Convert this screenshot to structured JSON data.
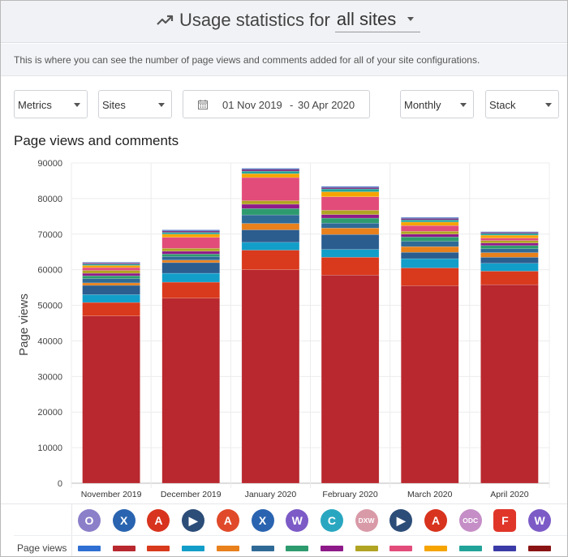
{
  "header": {
    "title": "Usage statistics for",
    "site_select_value": "all sites"
  },
  "info": "This is where you can see the number of page views and comments added for all of your site configurations.",
  "controls": {
    "metrics_label": "Metrics",
    "sites_label": "Sites",
    "date_start": "01 Nov 2019",
    "date_sep": "-",
    "date_end": "30 Apr 2020",
    "interval_label": "Monthly",
    "mode_label": "Stack"
  },
  "chart_title": "Page views and comments",
  "chart_data": {
    "type": "bar",
    "stacked": true,
    "categories": [
      "November 2019",
      "December 2019",
      "January 2020",
      "February 2020",
      "March 2020",
      "April 2020"
    ],
    "ylabel": "Page views",
    "ylim": [
      0,
      90000
    ],
    "yticks": [
      0,
      10000,
      20000,
      30000,
      40000,
      50000,
      60000,
      70000,
      80000,
      90000
    ],
    "grid": true,
    "series": [
      {
        "color": "#b8282e",
        "values": [
          47000,
          52000,
          60000,
          58500,
          55500,
          55800
        ]
      },
      {
        "color": "#d9391c",
        "values": [
          3800,
          4500,
          5500,
          5000,
          5000,
          3800
        ]
      },
      {
        "color": "#129ec9",
        "values": [
          2200,
          2500,
          2200,
          2200,
          2600,
          2200
        ]
      },
      {
        "color": "#2b5d8f",
        "values": [
          2600,
          3000,
          3500,
          4200,
          1800,
          1700
        ]
      },
      {
        "color": "#e8801c",
        "values": [
          700,
          700,
          1800,
          1800,
          1600,
          1300
        ]
      },
      {
        "color": "#2f6a97",
        "values": [
          1200,
          1000,
          2400,
          1400,
          1500,
          1100
        ]
      },
      {
        "color": "#2e9b6e",
        "values": [
          800,
          700,
          1800,
          1400,
          1200,
          900
        ]
      },
      {
        "color": "#8e1a8a",
        "values": [
          700,
          800,
          1200,
          1000,
          800,
          700
        ]
      },
      {
        "color": "#b0a422",
        "values": [
          800,
          800,
          1000,
          1200,
          800,
          700
        ]
      },
      {
        "color": "#e24c7a",
        "values": [
          800,
          3100,
          6500,
          3800,
          1600,
          700
        ]
      },
      {
        "color": "#f6a400",
        "values": [
          600,
          900,
          1100,
          1400,
          1000,
          800
        ]
      },
      {
        "color": "#22a39a",
        "values": [
          400,
          500,
          700,
          800,
          600,
          500
        ]
      },
      {
        "color": "#7b2a7c",
        "values": [
          300,
          400,
          500,
          400,
          400,
          300
        ]
      },
      {
        "color": "#3b6bbf",
        "values": [
          200,
          300,
          300,
          300,
          300,
          200
        ]
      }
    ]
  },
  "legend": {
    "row_label": "Page views",
    "sites": [
      {
        "icon": "o-circle-logo-icon",
        "letter": "O",
        "color": "#8b7fc9"
      },
      {
        "icon": "x-circle-logo-icon",
        "letter": "X",
        "color": "#2a64b0"
      },
      {
        "icon": "a-circle-logo-icon",
        "letter": "A",
        "color": "#d8331e"
      },
      {
        "icon": "play-circle-logo-icon",
        "letter": "▶",
        "color": "#2c4d78"
      },
      {
        "icon": "a-triangle-logo-icon",
        "letter": "A",
        "color": "#e04a2a"
      },
      {
        "icon": "x-circle-logo-icon",
        "letter": "X",
        "color": "#2a64b0"
      },
      {
        "icon": "w-circle-logo-icon",
        "letter": "W",
        "color": "#7c5bc7"
      },
      {
        "icon": "c-circle-logo-icon",
        "letter": "C",
        "color": "#2aa7c0"
      },
      {
        "icon": "dxw-circle-logo-icon",
        "letter": "DXW",
        "color": "#d99aa8"
      },
      {
        "icon": "play-circle-logo-icon",
        "letter": "▶",
        "color": "#2c4d78"
      },
      {
        "icon": "a-circle-logo-icon",
        "letter": "A",
        "color": "#d8331e"
      },
      {
        "icon": "odc-circle-logo-icon",
        "letter": "ODC",
        "color": "#c58ec7"
      },
      {
        "icon": "f-square-logo-icon",
        "letter": "F",
        "color": "#e0362a"
      },
      {
        "icon": "w-circle-logo-icon",
        "letter": "W",
        "color": "#7c5bc7"
      }
    ],
    "swatch_colors": [
      "#2f6fd3",
      "#b8282e",
      "#d9391c",
      "#129ec9",
      "#e8801c",
      "#2f6a97",
      "#2e9b6e",
      "#8e1a8a",
      "#b0a422",
      "#e24c7a",
      "#f6a400",
      "#22a39a",
      "#3b3ba8",
      "#8a1414"
    ]
  }
}
